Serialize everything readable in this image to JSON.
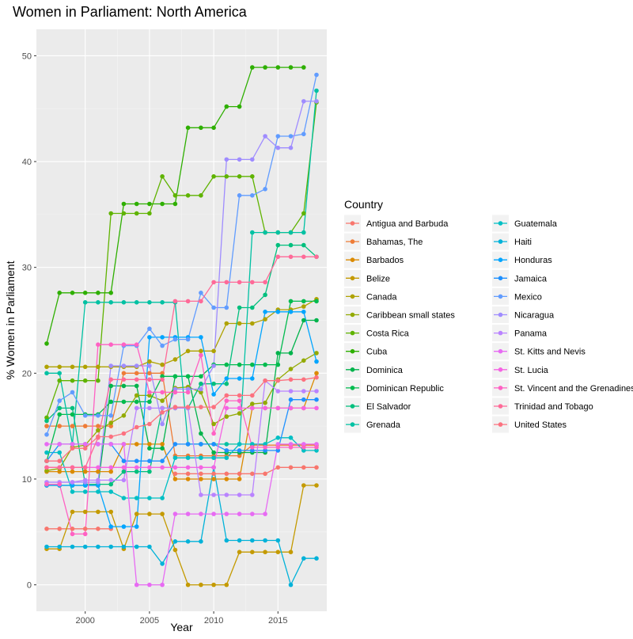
{
  "chart_data": {
    "type": "line",
    "title": "Women in Parliament: North America",
    "xlabel": "Year",
    "ylabel": "% Women in Parliament",
    "xlim": [
      1996.2,
      2018.8
    ],
    "ylim": [
      -2.5,
      52.5
    ],
    "x_ticks": [
      2000,
      2005,
      2010,
      2015
    ],
    "y_ticks": [
      0,
      10,
      20,
      30,
      40,
      50
    ],
    "legend_title": "Country",
    "legend_position": "right",
    "grid": true,
    "x": [
      1997,
      1998,
      1999,
      2000,
      2001,
      2002,
      2003,
      2004,
      2005,
      2006,
      2007,
      2008,
      2009,
      2010,
      2011,
      2012,
      2013,
      2014,
      2015,
      2016,
      2017,
      2018
    ],
    "series": [
      {
        "name": "Antigua and Barbuda",
        "color": "#F8766D",
        "values": [
          5.3,
          5.3,
          5.3,
          5.3,
          5.3,
          5.3,
          null,
          null,
          null,
          null,
          10.5,
          10.5,
          10.5,
          10.5,
          10.5,
          10.5,
          10.5,
          10.5,
          11.1,
          11.1,
          11.1,
          11.1
        ]
      },
      {
        "name": "Bahamas, The",
        "color": "#EE7C37",
        "values": [
          15.0,
          15.0,
          15.0,
          15.0,
          15.0,
          15.0,
          20.0,
          20.0,
          20.0,
          20.0,
          12.2,
          12.2,
          12.2,
          12.2,
          12.2,
          12.2,
          13.2,
          13.2,
          13.2,
          13.2,
          13.2,
          13.2
        ]
      },
      {
        "name": "Barbados",
        "color": "#DB8A00",
        "values": [
          10.7,
          10.7,
          10.7,
          10.7,
          10.7,
          10.7,
          13.3,
          13.3,
          13.3,
          13.3,
          10.0,
          10.0,
          10.0,
          10.0,
          10.0,
          10.0,
          16.7,
          16.7,
          16.7,
          16.7,
          16.7,
          20.0
        ]
      },
      {
        "name": "Belize",
        "color": "#C49A00",
        "values": [
          3.4,
          3.4,
          6.9,
          6.9,
          6.9,
          6.9,
          3.4,
          6.7,
          6.7,
          6.7,
          3.3,
          0,
          0,
          0,
          0,
          3.1,
          3.1,
          3.1,
          3.1,
          3.1,
          9.4,
          9.4
        ]
      },
      {
        "name": "Canada",
        "color": "#AFA200",
        "values": [
          20.6,
          20.6,
          20.6,
          20.6,
          20.6,
          20.6,
          20.6,
          20.6,
          21.1,
          20.8,
          21.3,
          22.1,
          22.1,
          22.1,
          24.7,
          24.7,
          24.7,
          25.1,
          26.0,
          26.0,
          26.3,
          27.0
        ]
      },
      {
        "name": "Caribbean small states",
        "color": "#93AA00",
        "values": [
          10.8,
          11.0,
          13.0,
          13.2,
          14.6,
          15.3,
          16.0,
          17.9,
          17.9,
          17.4,
          18.6,
          18.7,
          18.2,
          15.2,
          15.9,
          16.2,
          17.1,
          17.2,
          19.4,
          20.4,
          21.2,
          21.9
        ]
      },
      {
        "name": "Costa Rica",
        "color": "#5FB300",
        "values": [
          15.8,
          19.3,
          19.3,
          19.3,
          19.3,
          35.1,
          35.1,
          35.1,
          35.1,
          38.6,
          36.8,
          36.8,
          36.8,
          38.6,
          38.6,
          38.6,
          38.6,
          33.3,
          33.3,
          33.3,
          35.1,
          45.6
        ]
      },
      {
        "name": "Cuba",
        "color": "#2EAF00",
        "values": [
          22.8,
          27.6,
          27.6,
          27.6,
          27.6,
          27.6,
          36.0,
          36.0,
          36.0,
          36.0,
          36.0,
          43.2,
          43.2,
          43.2,
          45.2,
          45.2,
          48.9,
          48.9,
          48.9,
          48.9,
          48.9,
          null
        ]
      },
      {
        "name": "Dominica",
        "color": "#00B34B",
        "values": [
          9.4,
          9.4,
          9.4,
          9.4,
          9.4,
          18.8,
          18.8,
          18.8,
          12.9,
          12.9,
          19.7,
          19.7,
          14.3,
          12.5,
          12.5,
          12.5,
          12.5,
          12.5,
          21.9,
          21.9,
          25.0,
          25.0
        ]
      },
      {
        "name": "Dominican Republic",
        "color": "#00BB4E",
        "values": [
          11.7,
          16.1,
          16.1,
          16.1,
          16.1,
          17.3,
          17.3,
          17.3,
          17.3,
          19.7,
          19.7,
          19.7,
          19.7,
          20.8,
          20.8,
          20.8,
          20.8,
          20.8,
          20.8,
          26.8,
          26.8,
          26.8
        ]
      },
      {
        "name": "El Salvador",
        "color": "#00BF7D",
        "values": [
          15.5,
          16.7,
          16.7,
          9.5,
          9.5,
          9.5,
          10.7,
          10.7,
          10.7,
          16.7,
          16.7,
          16.7,
          19.0,
          19.0,
          19.0,
          26.2,
          26.2,
          27.4,
          32.1,
          32.1,
          32.1,
          31.0
        ]
      },
      {
        "name": "Grenada",
        "color": "#00C1A3",
        "values": [
          20.0,
          20.0,
          13.3,
          26.7,
          26.7,
          26.7,
          26.7,
          26.7,
          26.7,
          26.7,
          26.7,
          13.3,
          13.3,
          13.3,
          13.3,
          13.3,
          33.3,
          33.3,
          33.3,
          33.3,
          33.3,
          46.7
        ]
      },
      {
        "name": "Guatemala",
        "color": "#00BFC4",
        "values": [
          12.5,
          12.5,
          8.8,
          8.8,
          8.8,
          8.8,
          8.2,
          8.2,
          8.2,
          8.2,
          12.0,
          12.0,
          12.0,
          12.0,
          12.0,
          13.3,
          13.3,
          13.3,
          13.9,
          13.9,
          12.7,
          12.7
        ]
      },
      {
        "name": "Haiti",
        "color": "#00B2D9",
        "values": [
          3.6,
          3.6,
          3.6,
          3.6,
          3.6,
          3.6,
          3.6,
          3.6,
          3.6,
          2.0,
          4.1,
          4.1,
          4.1,
          11.1,
          4.2,
          4.2,
          4.2,
          4.2,
          4.2,
          0,
          2.5,
          2.5
        ]
      },
      {
        "name": "Honduras",
        "color": "#00A5FF",
        "values": [
          9.4,
          9.4,
          9.4,
          9.4,
          9.4,
          5.5,
          5.5,
          5.5,
          23.4,
          23.4,
          23.4,
          23.4,
          23.4,
          18.0,
          19.5,
          19.5,
          19.5,
          25.8,
          25.8,
          25.8,
          25.8,
          21.1
        ]
      },
      {
        "name": "Jamaica",
        "color": "#1E90FF",
        "values": [
          11.7,
          13.3,
          13.3,
          13.3,
          13.3,
          13.3,
          11.7,
          11.7,
          11.7,
          11.7,
          13.3,
          13.3,
          13.3,
          13.3,
          12.7,
          12.7,
          12.7,
          12.7,
          12.7,
          17.5,
          17.5,
          17.5
        ]
      },
      {
        "name": "Mexico",
        "color": "#619CFF",
        "values": [
          14.2,
          17.4,
          18.2,
          16.0,
          16.0,
          16.0,
          22.6,
          22.6,
          24.2,
          22.6,
          23.2,
          23.2,
          27.6,
          26.2,
          26.2,
          36.8,
          36.8,
          37.4,
          42.4,
          42.4,
          42.6,
          48.2
        ]
      },
      {
        "name": "Nicaragua",
        "color": "#9F8CFF",
        "values": [
          9.7,
          9.7,
          9.7,
          9.7,
          9.7,
          20.7,
          20.7,
          20.7,
          20.7,
          15.2,
          18.5,
          18.5,
          18.5,
          20.7,
          40.2,
          40.2,
          40.2,
          42.4,
          41.3,
          41.3,
          45.7,
          45.7
        ]
      },
      {
        "name": "Panama",
        "color": "#B983FF",
        "values": [
          9.7,
          9.7,
          9.7,
          9.9,
          9.9,
          9.9,
          9.9,
          16.7,
          16.7,
          16.7,
          16.7,
          16.7,
          8.5,
          8.5,
          8.5,
          8.5,
          8.5,
          19.3,
          18.3,
          18.3,
          18.3,
          18.3
        ]
      },
      {
        "name": "St. Kitts and Nevis",
        "color": "#E76BF3",
        "values": [
          13.3,
          13.3,
          13.3,
          13.3,
          13.3,
          13.3,
          13.3,
          0,
          0,
          0,
          6.7,
          6.7,
          6.7,
          6.7,
          6.7,
          6.7,
          6.7,
          6.7,
          13.3,
          13.3,
          13.3,
          13.3
        ]
      },
      {
        "name": "St. Lucia",
        "color": "#F564E3",
        "values": [
          11.1,
          11.1,
          11.1,
          11.1,
          11.1,
          11.1,
          11.1,
          11.1,
          11.1,
          11.1,
          11.1,
          11.1,
          11.1,
          11.1,
          16.7,
          16.7,
          16.7,
          16.7,
          16.7,
          16.7,
          16.7,
          16.7
        ]
      },
      {
        "name": "St. Vincent and the Grenadines",
        "color": "#FF61C3",
        "values": [
          9.5,
          9.5,
          4.8,
          4.8,
          22.7,
          22.7,
          22.7,
          22.7,
          18.2,
          18.2,
          18.2,
          18.2,
          21.7,
          14.3,
          17.4,
          17.4,
          13.0,
          13.0,
          13.0,
          13.0,
          13.0,
          13.0
        ]
      },
      {
        "name": "Trinidad and Tobago",
        "color": "#FF6A98",
        "values": [
          11.1,
          11.1,
          11.1,
          11.1,
          13.9,
          19.4,
          19.4,
          19.4,
          19.4,
          19.4,
          26.8,
          26.8,
          26.8,
          28.6,
          28.6,
          28.6,
          28.6,
          28.6,
          31.0,
          31.0,
          31.0,
          31.0
        ]
      },
      {
        "name": "United States",
        "color": "#FC717F",
        "values": [
          11.7,
          11.7,
          12.9,
          12.9,
          14.0,
          14.0,
          14.3,
          14.9,
          15.2,
          16.3,
          16.8,
          16.8,
          16.8,
          16.8,
          17.9,
          17.9,
          17.9,
          19.3,
          19.3,
          19.4,
          19.4,
          19.6
        ]
      }
    ]
  }
}
